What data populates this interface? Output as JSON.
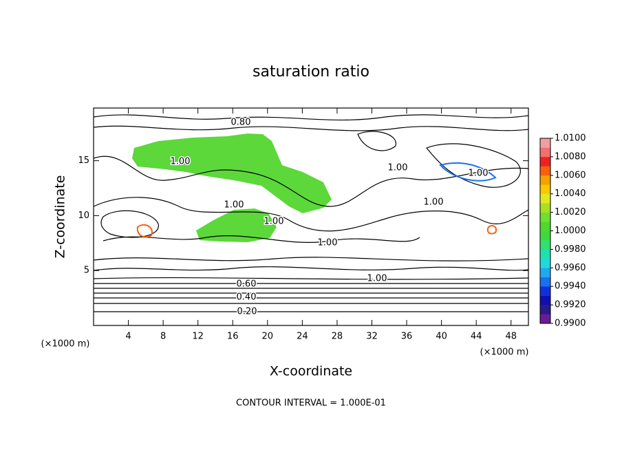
{
  "chart_data": {
    "type": "contour",
    "title": "saturation ratio",
    "x_label": "X-coordinate",
    "y_label": "Z-coordinate",
    "x_unit": "(×1000 m)",
    "y_unit": "(×1000 m)",
    "footer": "CONTOUR INTERVAL = 1.000E-01",
    "xlim": [
      0,
      50
    ],
    "ylim": [
      0,
      19.8
    ],
    "xticks": [
      4,
      8,
      12,
      16,
      20,
      24,
      28,
      32,
      36,
      40,
      44,
      48
    ],
    "yticks": [
      5,
      10,
      15
    ],
    "clim": [
      0.99,
      1.01
    ],
    "colormap": [
      "#6a1b9a",
      "#2a1a8a",
      "#1010b0",
      "#1030e0",
      "#1a70f0",
      "#20a8f0",
      "#20d8e0",
      "#20e0b0",
      "#30e070",
      "#40d840",
      "#50d830",
      "#70e030",
      "#a8e020",
      "#e0e820",
      "#f8c800",
      "#f8a000",
      "#f86010",
      "#f02020",
      "#f07070",
      "#f0a0a0"
    ],
    "cticks": [
      {
        "value": 0.99,
        "label": "0.9900"
      },
      {
        "value": 0.992,
        "label": "0.9920"
      },
      {
        "value": 0.994,
        "label": "0.9940"
      },
      {
        "value": 0.996,
        "label": "0.9960"
      },
      {
        "value": 0.998,
        "label": "0.9980"
      },
      {
        "value": 1.0,
        "label": "1.0000"
      },
      {
        "value": 1.002,
        "label": "1.0020"
      },
      {
        "value": 1.004,
        "label": "1.0040"
      },
      {
        "value": 1.006,
        "label": "1.0060"
      },
      {
        "value": 1.008,
        "label": "1.0080"
      },
      {
        "value": 1.01,
        "label": "1.0100"
      }
    ],
    "contour_labels": [
      {
        "value": 0.8,
        "label": "0.80"
      },
      {
        "value": 1.0,
        "label": "1.00"
      },
      {
        "value": 1.0,
        "label": "1.00"
      },
      {
        "value": 1.0,
        "label": "1.00"
      },
      {
        "value": 1.0,
        "label": "1.00"
      },
      {
        "value": 1.0,
        "label": "1.00"
      },
      {
        "value": 1.0,
        "label": "1.00"
      },
      {
        "value": 1.0,
        "label": "1.00"
      },
      {
        "value": 1.0,
        "label": "1.00"
      },
      {
        "value": 0.6,
        "label": "0.60"
      },
      {
        "value": 0.4,
        "label": "0.40"
      },
      {
        "value": 0.2,
        "label": "0.20"
      }
    ]
  }
}
